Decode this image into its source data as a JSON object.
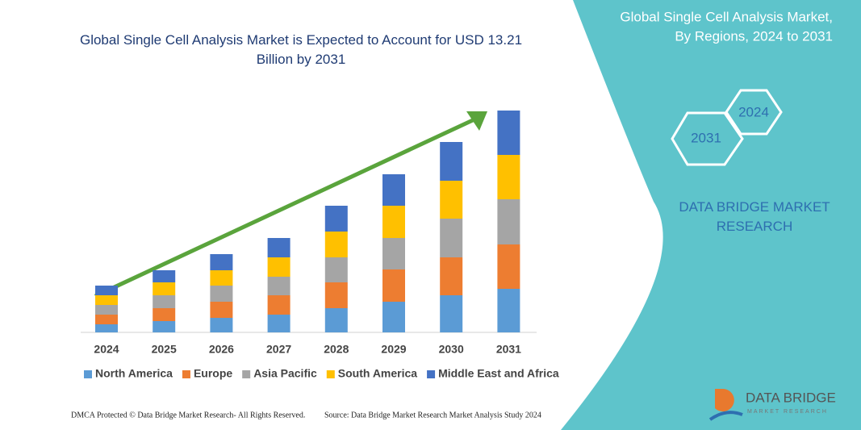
{
  "chart_data": {
    "type": "stacked_bar",
    "title": "Global Single Cell Analysis Market is Expected to Account for USD 13.21 Billion by 2031",
    "categories": [
      "2024",
      "2025",
      "2026",
      "2027",
      "2028",
      "2029",
      "2030",
      "2031"
    ],
    "series": [
      {
        "name": "North America",
        "color": "#5b9bd5",
        "values": [
          10,
          14,
          18,
          22,
          30,
          38,
          46,
          54
        ]
      },
      {
        "name": "Europe",
        "color": "#ed7d31",
        "values": [
          12,
          16,
          20,
          24,
          32,
          40,
          47,
          55
        ]
      },
      {
        "name": "Asia Pacific",
        "color": "#a5a5a5",
        "values": [
          12,
          16,
          20,
          23,
          31,
          39,
          48,
          56
        ]
      },
      {
        "name": "South America",
        "color": "#ffc000",
        "values": [
          12,
          16,
          19,
          24,
          32,
          40,
          47,
          55
        ]
      },
      {
        "name": "Middle East and Africa",
        "color": "#4472c4",
        "values": [
          12,
          15,
          20,
          24,
          32,
          39,
          48,
          55
        ]
      }
    ]
  },
  "panel": {
    "title_line1": "Global Single Cell Analysis Market,",
    "title_line2": "By Regions, 2024 to 2031",
    "hex_a": "2024",
    "hex_b": "2031",
    "brand": "DATA BRIDGE MARKET RESEARCH",
    "logo_name": "DATA BRIDGE",
    "logo_sub": "MARKET RESEARCH"
  },
  "footer": {
    "left": "DMCA Protected © Data Bridge Market Research- All Rights Reserved.",
    "right": "Source: Data Bridge Market Research Market Analysis Study 2024"
  }
}
